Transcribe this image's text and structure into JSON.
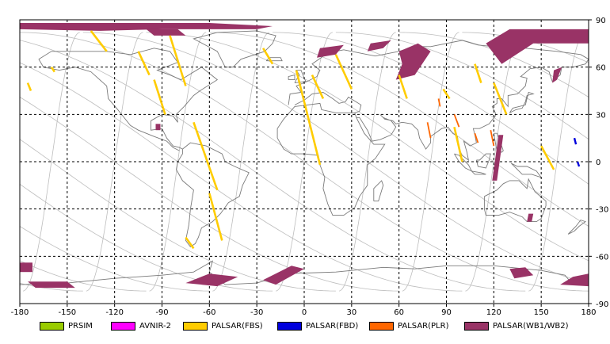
{
  "map": {
    "lon_ticks": [
      "-180",
      "-150",
      "-120",
      "-90",
      "-60",
      "-30",
      "0",
      "30",
      "60",
      "90",
      "120",
      "150",
      "180"
    ],
    "lat_ticks": [
      "90",
      "60",
      "30",
      "0",
      "-30",
      "-60",
      "-90"
    ],
    "grid_color": "#000000",
    "orbit_color": "#bdbdbd",
    "coast_color": "#7a7a7a"
  },
  "legend": [
    {
      "key": "prsim",
      "label": "PRSIM",
      "color": "#99cc00"
    },
    {
      "key": "avnir2",
      "label": "AVNIR-2",
      "color": "#ff00ff"
    },
    {
      "key": "palsar-fbs",
      "label": "PALSAR(FBS)",
      "color": "#ffcc00"
    },
    {
      "key": "palsar-fbd",
      "label": "PALSAR(FBD)",
      "color": "#0000dd"
    },
    {
      "key": "palsar-plr",
      "label": "PALSAR(PLR)",
      "color": "#ff6600"
    },
    {
      "key": "palsar-wb",
      "label": "PALSAR(WB1/WB2)",
      "color": "#993366"
    }
  ]
}
